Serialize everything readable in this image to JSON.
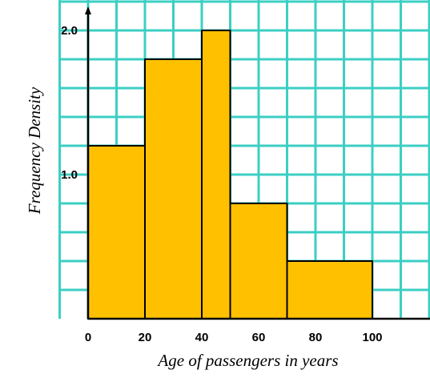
{
  "chart_data": {
    "type": "histogram",
    "title": "",
    "xlabel": "Age of passengers in years",
    "ylabel": "Frequency Density",
    "bins": [
      {
        "from": 0,
        "to": 20,
        "density": 1.2
      },
      {
        "from": 20,
        "to": 40,
        "density": 1.8
      },
      {
        "from": 40,
        "to": 50,
        "density": 2.0
      },
      {
        "from": 50,
        "to": 70,
        "density": 0.8
      },
      {
        "from": 70,
        "to": 100,
        "density": 0.4
      }
    ],
    "x_ticks": [
      {
        "value": 0,
        "label": "0"
      },
      {
        "value": 20,
        "label": "20"
      },
      {
        "value": 40,
        "label": "40"
      },
      {
        "value": 60,
        "label": "60"
      },
      {
        "value": 80,
        "label": "80"
      },
      {
        "value": 100,
        "label": "100"
      }
    ],
    "y_ticks": [
      {
        "value": 1.0,
        "label": "1.0"
      },
      {
        "value": 2.0,
        "label": "2.0"
      }
    ],
    "xlim": [
      0,
      115
    ],
    "ylim": [
      0,
      2.2
    ],
    "grid": true,
    "colors": {
      "bar_fill": "#FFC000",
      "bar_stroke": "#000000",
      "grid": "#3CCFC4",
      "axis": "#000000"
    }
  }
}
